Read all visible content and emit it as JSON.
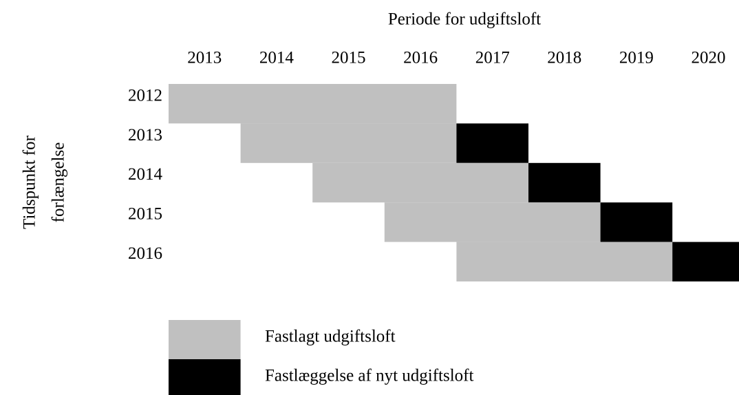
{
  "title": "Periode for udgiftsloft",
  "y_label": [
    "Tidspunkt for",
    "forlængelse"
  ],
  "columns": [
    "2013",
    "2014",
    "2015",
    "2016",
    "2017",
    "2018",
    "2019",
    "2020"
  ],
  "rows": [
    {
      "label": "2012",
      "fixed": [
        0,
        3
      ],
      "new": null
    },
    {
      "label": "2013",
      "fixed": [
        1,
        3
      ],
      "new": 4
    },
    {
      "label": "2014",
      "fixed": [
        2,
        4
      ],
      "new": 5
    },
    {
      "label": "2015",
      "fixed": [
        3,
        5
      ],
      "new": 6
    },
    {
      "label": "2016",
      "fixed": [
        4,
        6
      ],
      "new": 7
    }
  ],
  "legend": [
    {
      "label": "Fastlagt udgiftsloft",
      "color": "#c0c0c0"
    },
    {
      "label": "Fastlæggelse af nyt udgiftsloft",
      "color": "#000000"
    }
  ]
}
